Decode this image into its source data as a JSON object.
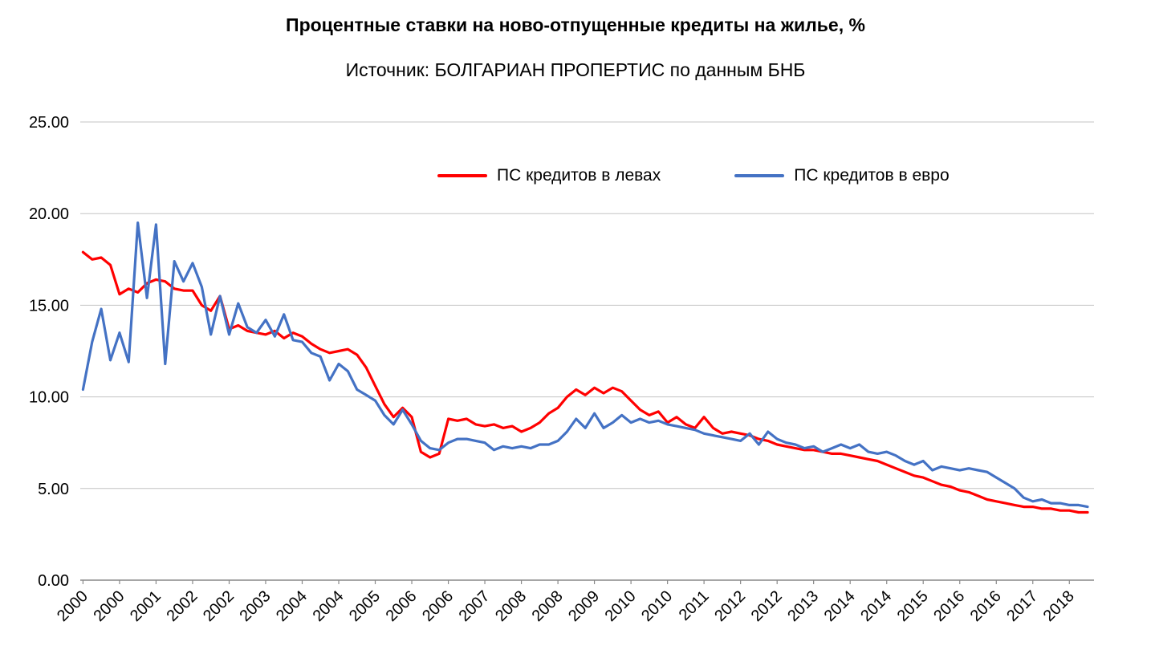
{
  "title": "Процентные ставки на ново-отпущенные кредиты на жилье, %",
  "subtitle": "Источник: БОЛГАРИАН ПРОПЕРТИС по данным БНБ",
  "colors": {
    "series_levs": "#ff0000",
    "series_euro": "#4472c4",
    "grid": "#c3c3c3",
    "axis": "#898989",
    "text": "#000000",
    "background": "#ffffff"
  },
  "chart_data": {
    "type": "line",
    "title": "Процентные ставки на ново-отпущенные кредиты на жилье, %",
    "subtitle": "Источник: БОЛГАРИАН ПРОПЕРТИС по данным БНБ",
    "xlabel": "",
    "ylabel": "",
    "ylim": [
      0,
      25
    ],
    "xlim": [
      1999.95,
      2018.45
    ],
    "grid": "horizontal",
    "legend_position": "top-inside",
    "x_unit": "decimal_year_monthly_series_sampled_bimonthly",
    "x": [
      2000.0,
      2000.167,
      2000.333,
      2000.5,
      2000.667,
      2000.833,
      2001.0,
      2001.167,
      2001.333,
      2001.5,
      2001.667,
      2001.833,
      2002.0,
      2002.167,
      2002.333,
      2002.5,
      2002.667,
      2002.833,
      2003.0,
      2003.167,
      2003.333,
      2003.5,
      2003.667,
      2003.833,
      2004.0,
      2004.167,
      2004.333,
      2004.5,
      2004.667,
      2004.833,
      2005.0,
      2005.167,
      2005.333,
      2005.5,
      2005.667,
      2005.833,
      2006.0,
      2006.167,
      2006.333,
      2006.5,
      2006.667,
      2006.833,
      2007.0,
      2007.167,
      2007.333,
      2007.5,
      2007.667,
      2007.833,
      2008.0,
      2008.167,
      2008.333,
      2008.5,
      2008.667,
      2008.833,
      2009.0,
      2009.167,
      2009.333,
      2009.5,
      2009.667,
      2009.833,
      2010.0,
      2010.167,
      2010.333,
      2010.5,
      2010.667,
      2010.833,
      2011.0,
      2011.167,
      2011.333,
      2011.5,
      2011.667,
      2011.833,
      2012.0,
      2012.167,
      2012.333,
      2012.5,
      2012.667,
      2012.833,
      2013.0,
      2013.167,
      2013.333,
      2013.5,
      2013.667,
      2013.833,
      2014.0,
      2014.167,
      2014.333,
      2014.5,
      2014.667,
      2014.833,
      2015.0,
      2015.167,
      2015.333,
      2015.5,
      2015.667,
      2015.833,
      2016.0,
      2016.167,
      2016.333,
      2016.5,
      2016.667,
      2016.833,
      2017.0,
      2017.167,
      2017.333,
      2017.5,
      2017.667,
      2017.833,
      2018.0,
      2018.167,
      2018.333
    ],
    "series": [
      {
        "name": "ПС кредитов в левах",
        "color": "#ff0000",
        "values": [
          17.9,
          17.5,
          17.6,
          17.2,
          15.6,
          15.9,
          15.7,
          16.2,
          16.4,
          16.3,
          15.9,
          15.8,
          15.8,
          15.0,
          14.7,
          15.5,
          13.7,
          13.9,
          13.6,
          13.5,
          13.4,
          13.6,
          13.2,
          13.5,
          13.3,
          12.9,
          12.6,
          12.4,
          12.5,
          12.6,
          12.3,
          11.6,
          10.6,
          9.6,
          8.9,
          9.4,
          8.9,
          7.0,
          6.7,
          6.9,
          8.8,
          8.7,
          8.8,
          8.5,
          8.4,
          8.5,
          8.3,
          8.4,
          8.1,
          8.3,
          8.6,
          9.1,
          9.4,
          10.0,
          10.4,
          10.1,
          10.5,
          10.2,
          10.5,
          10.3,
          9.8,
          9.3,
          9.0,
          9.2,
          8.6,
          8.9,
          8.5,
          8.3,
          8.9,
          8.3,
          8.0,
          8.1,
          8.0,
          7.9,
          7.7,
          7.6,
          7.4,
          7.3,
          7.2,
          7.1,
          7.1,
          7.0,
          6.9,
          6.9,
          6.8,
          6.7,
          6.6,
          6.5,
          6.3,
          6.1,
          5.9,
          5.7,
          5.6,
          5.4,
          5.2,
          5.1,
          4.9,
          4.8,
          4.6,
          4.4,
          4.3,
          4.2,
          4.1,
          4.0,
          4.0,
          3.9,
          3.9,
          3.8,
          3.8,
          3.7,
          3.7
        ]
      },
      {
        "name": "ПС кредитов в евро",
        "color": "#4472c4",
        "values": [
          10.4,
          13.0,
          14.8,
          12.0,
          13.5,
          11.9,
          19.5,
          15.4,
          19.4,
          11.8,
          17.4,
          16.3,
          17.3,
          16.0,
          13.4,
          15.5,
          13.4,
          15.1,
          13.8,
          13.5,
          14.2,
          13.3,
          14.5,
          13.1,
          13.0,
          12.4,
          12.2,
          10.9,
          11.8,
          11.4,
          10.4,
          10.1,
          9.8,
          9.0,
          8.5,
          9.3,
          8.5,
          7.6,
          7.2,
          7.1,
          7.5,
          7.7,
          7.7,
          7.6,
          7.5,
          7.1,
          7.3,
          7.2,
          7.3,
          7.2,
          7.4,
          7.4,
          7.6,
          8.1,
          8.8,
          8.3,
          9.1,
          8.3,
          8.6,
          9.0,
          8.6,
          8.8,
          8.6,
          8.7,
          8.5,
          8.4,
          8.3,
          8.2,
          8.0,
          7.9,
          7.8,
          7.7,
          7.6,
          8.0,
          7.4,
          8.1,
          7.7,
          7.5,
          7.4,
          7.2,
          7.3,
          7.0,
          7.2,
          7.4,
          7.2,
          7.4,
          7.0,
          6.9,
          7.0,
          6.8,
          6.5,
          6.3,
          6.5,
          6.0,
          6.2,
          6.1,
          6.0,
          6.1,
          6.0,
          5.9,
          5.6,
          5.3,
          5.0,
          4.5,
          4.3,
          4.4,
          4.2,
          4.2,
          4.1,
          4.1,
          4.0
        ]
      }
    ],
    "y_ticks": [
      {
        "value": 0,
        "label": "0.00"
      },
      {
        "value": 5,
        "label": "5.00"
      },
      {
        "value": 10,
        "label": "10.00"
      },
      {
        "value": 15,
        "label": "15.00"
      },
      {
        "value": 20,
        "label": "20.00"
      },
      {
        "value": 25,
        "label": "25.00"
      }
    ],
    "x_ticks": [
      {
        "value": 2000.0,
        "label": "2000"
      },
      {
        "value": 2000.667,
        "label": "2000"
      },
      {
        "value": 2001.333,
        "label": "2001"
      },
      {
        "value": 2002.0,
        "label": "2002"
      },
      {
        "value": 2002.667,
        "label": "2002"
      },
      {
        "value": 2003.333,
        "label": "2003"
      },
      {
        "value": 2004.0,
        "label": "2004"
      },
      {
        "value": 2004.667,
        "label": "2004"
      },
      {
        "value": 2005.333,
        "label": "2005"
      },
      {
        "value": 2006.0,
        "label": "2006"
      },
      {
        "value": 2006.667,
        "label": "2006"
      },
      {
        "value": 2007.333,
        "label": "2007"
      },
      {
        "value": 2008.0,
        "label": "2008"
      },
      {
        "value": 2008.667,
        "label": "2008"
      },
      {
        "value": 2009.333,
        "label": "2009"
      },
      {
        "value": 2010.0,
        "label": "2010"
      },
      {
        "value": 2010.667,
        "label": "2010"
      },
      {
        "value": 2011.333,
        "label": "2011"
      },
      {
        "value": 2012.0,
        "label": "2012"
      },
      {
        "value": 2012.667,
        "label": "2012"
      },
      {
        "value": 2013.333,
        "label": "2013"
      },
      {
        "value": 2014.0,
        "label": "2014"
      },
      {
        "value": 2014.667,
        "label": "2014"
      },
      {
        "value": 2015.333,
        "label": "2015"
      },
      {
        "value": 2016.0,
        "label": "2016"
      },
      {
        "value": 2016.667,
        "label": "2016"
      },
      {
        "value": 2017.333,
        "label": "2017"
      },
      {
        "value": 2018.0,
        "label": "2018"
      }
    ]
  }
}
